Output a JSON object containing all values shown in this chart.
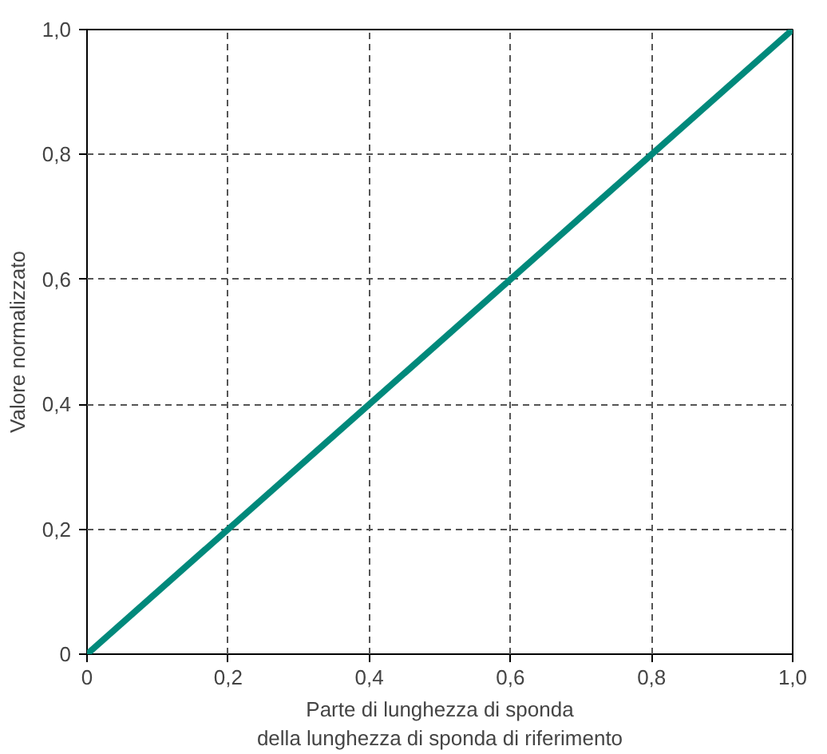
{
  "chart_data": {
    "type": "line",
    "x": [
      0,
      1
    ],
    "series": [
      {
        "color": "#00897b",
        "values": [
          0,
          1
        ]
      }
    ],
    "xlabel": "Parte di lunghezza di sponda\ndella lunghezza di sponda di riferimento",
    "ylabel": "Valore normalizzato",
    "xlim": [
      0,
      1
    ],
    "ylim": [
      0,
      1
    ],
    "xticks": [
      0,
      {
        "value": 0.2,
        "label": "0,2"
      },
      {
        "value": 0.4,
        "label": "0,4"
      },
      {
        "value": 0.6,
        "label": "0,6"
      },
      {
        "value": 0.8,
        "label": "0,8"
      },
      {
        "value": 1,
        "label": "1,0"
      }
    ],
    "yticks": [
      0,
      {
        "value": 0.2,
        "label": "0,2"
      },
      {
        "value": 0.4,
        "label": "0,4"
      },
      {
        "value": 0.6,
        "label": "0,6"
      },
      {
        "value": 0.8,
        "label": "0,8"
      },
      {
        "value": 1,
        "label": "1,0"
      }
    ],
    "grid": true,
    "line_style": "solid",
    "marker": "none"
  }
}
